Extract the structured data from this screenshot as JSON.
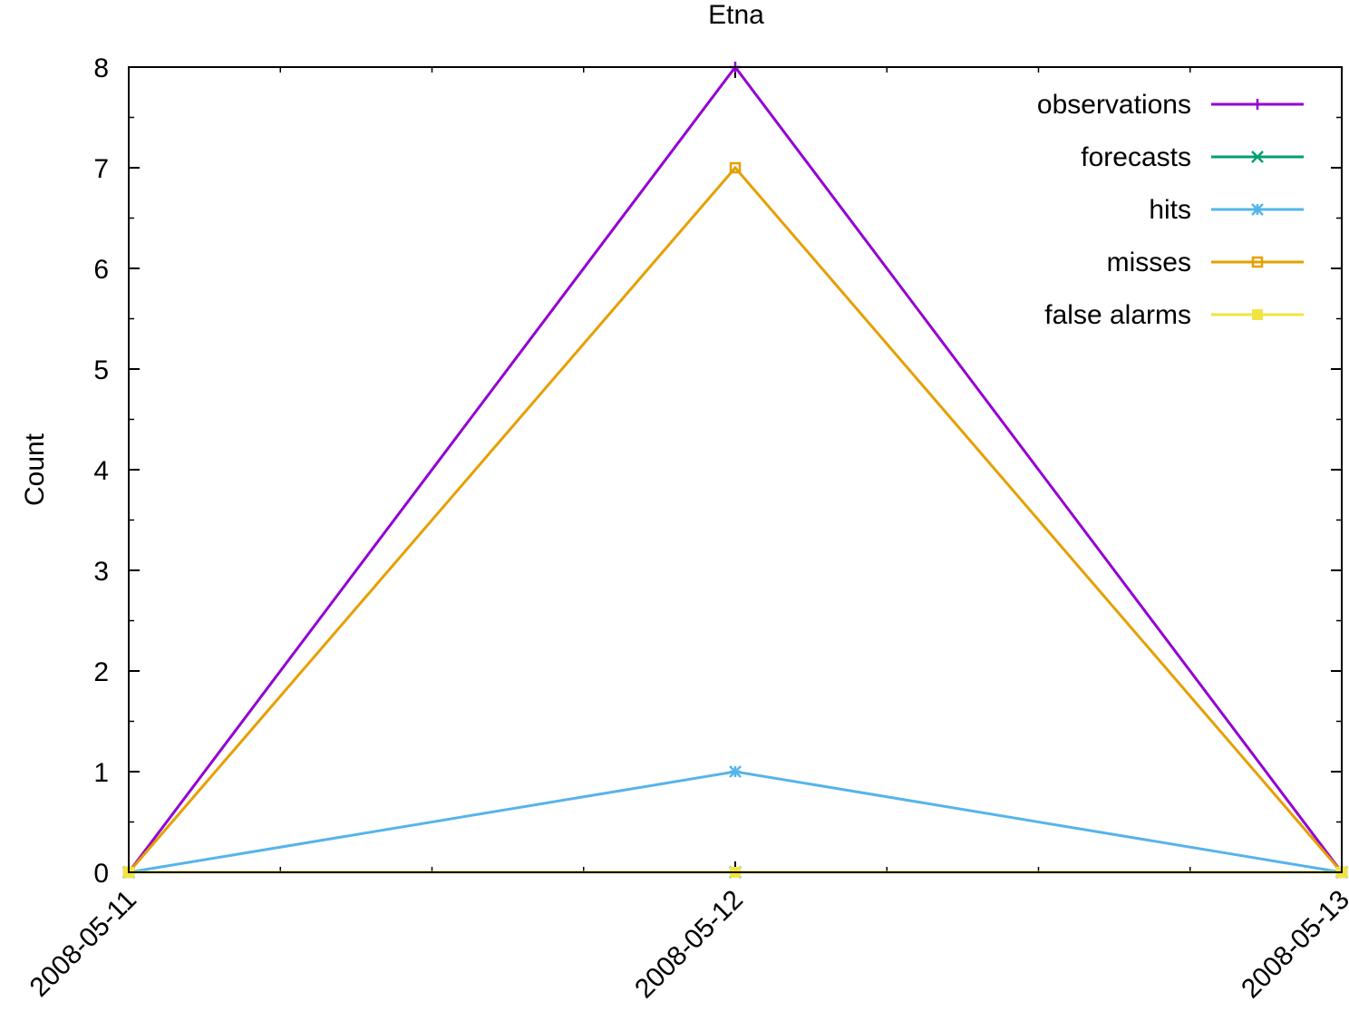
{
  "chart_data": {
    "type": "line",
    "title": "Etna",
    "xlabel": "",
    "ylabel": "Count",
    "categories": [
      "2008-05-11",
      "2008-05-12",
      "2008-05-13"
    ],
    "ylim": [
      0,
      8
    ],
    "yticks": [
      "0",
      "1",
      "2",
      "3",
      "4",
      "5",
      "6",
      "7",
      "8"
    ],
    "grid": false,
    "legend_position": "top-right",
    "series": [
      {
        "name": "observations",
        "values": [
          0,
          8,
          0
        ],
        "color": "#9400d3",
        "marker": "plus"
      },
      {
        "name": "forecasts",
        "values": [
          0,
          0,
          0
        ],
        "color": "#009e73",
        "marker": "cross"
      },
      {
        "name": "hits",
        "values": [
          0,
          1,
          0
        ],
        "color": "#56b4e9",
        "marker": "star"
      },
      {
        "name": "misses",
        "values": [
          0,
          7,
          0
        ],
        "color": "#e69f00",
        "marker": "box"
      },
      {
        "name": "false alarms",
        "values": [
          0,
          0,
          0
        ],
        "color": "#f0e442",
        "marker": "filled-box"
      }
    ]
  }
}
